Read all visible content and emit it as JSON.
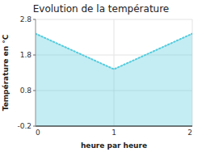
{
  "chart_data": {
    "type": "area",
    "title": "Evolution de la température",
    "xlabel": "heure par heure",
    "ylabel": "Température en °C",
    "x": [
      0,
      1,
      2
    ],
    "values": [
      2.4,
      1.4,
      2.4
    ],
    "color": "#55ccdd",
    "line_style": "dotted",
    "xlim": [
      0,
      2
    ],
    "ylim": [
      -0.2,
      2.8
    ],
    "xticks": [
      0,
      1,
      2
    ],
    "yticks": [
      -0.2,
      0.8,
      1.8,
      2.8
    ],
    "grid": true
  }
}
